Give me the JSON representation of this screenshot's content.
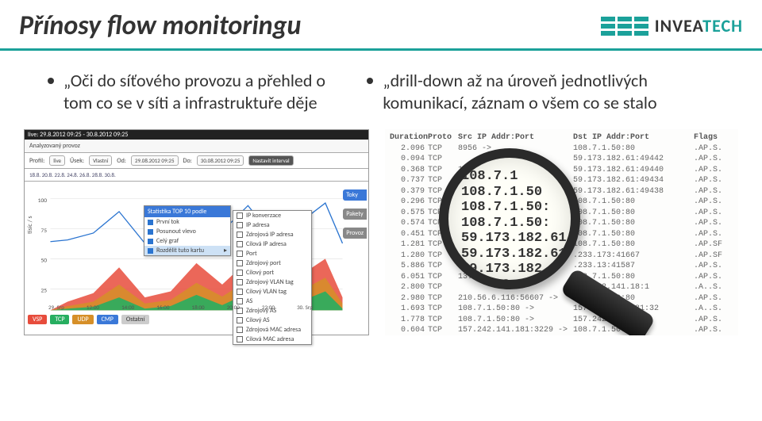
{
  "header": {
    "title": "Přínosy flow monitoringu",
    "logo_text_a": "INVEA",
    "logo_text_b": "TECH",
    "accent_color": "#1ba19a"
  },
  "bullets": {
    "left": "„Oči do síťového provozu a přehled o tom co se v síti a infrastruktuře děje",
    "right": "„drill-down až na úroveň jednotlivých komunikací, záznam o všem co se stalo"
  },
  "chart": {
    "live_range": "live: 29.8.2012 09:25 - 30.8.2012 09:25",
    "analyzed": "Analyzovaný provoz",
    "profile_label": "Profil:",
    "profile_value": "live",
    "usek_label": "Úsek:",
    "usek_value": "Vlastní",
    "od_label": "Od:",
    "od_value": "29.08.2012 09:25",
    "do_label": "Do:",
    "do_value": "30.08.2012 09:25",
    "set_interval": "Nastavit interval",
    "channel_dates": "18.8.   20.8.   22.8.   24.8.   26.8.   28.8.   30.8.",
    "side_tags": [
      "Toky",
      "Pakety",
      "Provoz"
    ],
    "context_title": "Statistika TOP 10 podle",
    "context_rows": [
      {
        "label": "První tok",
        "color": "#2a74d0"
      },
      {
        "label": "Posunout vlevo",
        "color": "#2a74d0"
      },
      {
        "label": "Celý graf",
        "color": "#2a74d0"
      },
      {
        "label": "Rozdělit tuto kartu",
        "color": "#2a74d0",
        "hover": true
      }
    ],
    "sub_rows": [
      "IP konverzace",
      "IP adresa",
      "Zdrojová IP adresa",
      "Cílová IP adresa",
      "Port",
      "Zdrojový port",
      "Cílový port",
      "Zdrojový VLAN tag",
      "Cílový VLAN tag",
      "AS",
      "Zdrojový AS",
      "Cílový AS",
      "Zdrojová MAC adresa",
      "Cílová MAC adresa"
    ],
    "ylabel": "tisíc / s",
    "yticks": [
      "100",
      "75",
      "50",
      "25"
    ],
    "xticks": [
      "29. Srp",
      "12:00",
      "14:00",
      "16:00",
      "18:00",
      "20:00",
      "22:00",
      "30. Srp"
    ],
    "bottom_buttons": {
      "vsp": "VSP",
      "tcp": "TCP",
      "udp": "UDP",
      "cmp": "CMP",
      "ost": "Ostatní"
    },
    "series_colors": {
      "blue": "#2a74d0",
      "green": "#27ae60",
      "orange": "#d68f28",
      "red": "#e74c3c"
    }
  },
  "log": {
    "headers": [
      "Duration",
      "Proto",
      "Src IP Addr:Port",
      "Dst IP Addr:Port",
      "Flags"
    ],
    "rows": [
      {
        "dur": "2.096",
        "proto": "TCP",
        "src": "         8956 ->",
        "dst": "108.7.1.50:80",
        "flg": ".AP.S."
      },
      {
        "dur": "0.094",
        "proto": "TCP",
        "src": "",
        "dst": "59.173.182.61:49442",
        "flg": ".AP.S."
      },
      {
        "dur": "0.368",
        "proto": "TCP",
        "src": "108.7.1.50 ->",
        "dst": "59.173.182.61:49440",
        "flg": ".AP.S."
      },
      {
        "dur": "0.737",
        "proto": "TCP",
        "src": "108.7.1.50:",
        "dst": "59.173.182.61:49434",
        "flg": ".AP.S."
      },
      {
        "dur": "0.379",
        "proto": "TCP",
        "src": "108.7.1.50:",
        "dst": "59.173.182.61:49438",
        "flg": ".AP.S."
      },
      {
        "dur": "0.296",
        "proto": "TCP",
        "src": "59.173.182.61:4",
        "dst": "108.7.1.50:80",
        "flg": ".AP.S."
      },
      {
        "dur": "0.575",
        "proto": "TCP",
        "src": "59.173.182.61:4",
        "dst": "108.7.1.50:80",
        "flg": ".AP.S."
      },
      {
        "dur": "0.574",
        "proto": "TCP",
        "src": "59.173.182.61:",
        "dst": "108.7.1.50:80",
        "flg": ".AP.S."
      },
      {
        "dur": "0.451",
        "proto": "TCP",
        "src": "59.173.182.61:",
        "dst": "108.7.1.50:80",
        "flg": ".AP.S."
      },
      {
        "dur": "1.281",
        "proto": "TCP",
        "src": "59.173.182.61",
        "dst": "108.7.1.50:80",
        "flg": ".AP.SF"
      },
      {
        "dur": "1.280",
        "proto": "TCP",
        "src": "59.173.182.6",
        "dst": "  .233.173:41667",
        "flg": ".AP.SF"
      },
      {
        "dur": "5.886",
        "proto": "TCP",
        "src": "59.173.182.6",
        "dst": "  .233.13:41587",
        "flg": ".AP.S."
      },
      {
        "dur": "6.051",
        "proto": "TCP",
        "src": "           13.233",
        "dst": "108.7.1.50:80",
        "flg": ".AP.S."
      },
      {
        "dur": "2.800",
        "proto": "TCP",
        "src": "",
        "dst": "157.242.141.18:1",
        "flg": ".A..S."
      },
      {
        "dur": "2.980",
        "proto": "TCP",
        "src": "210.56.6.116:56607 ->",
        "dst": "108.7.1.50:80",
        "flg": ".AP.S."
      },
      {
        "dur": "1.693",
        "proto": "TCP",
        "src": "108.7.1.50:80 ->",
        "dst": "157.242.141.181:32",
        "flg": ".A..S."
      },
      {
        "dur": "1.778",
        "proto": "TCP",
        "src": "108.7.1.50:80 ->",
        "dst": "157.242.141.181:",
        "flg": ".AP.S."
      },
      {
        "dur": "0.604",
        "proto": "TCP",
        "src": "157.242.141.181:3229 ->",
        "dst": "108.7.1.50:80",
        "flg": ".AP.S."
      },
      {
        "dur": "1.990",
        "proto": "TCP",
        "src": "108.7.1.50:80 ->",
        "dst": "157.242.141.181:",
        "flg": ".AP.S."
      }
    ],
    "magnified": [
      "108.7.1",
      "108.7.1.50",
      "108.7.1.50:",
      "108.7.1.50:",
      "59.173.182.61:4",
      "59.173.182.61:4",
      "59.173.182.61:",
      "59.173.182.61:",
      "59.173.182.61",
      "59.173.182.6"
    ]
  }
}
